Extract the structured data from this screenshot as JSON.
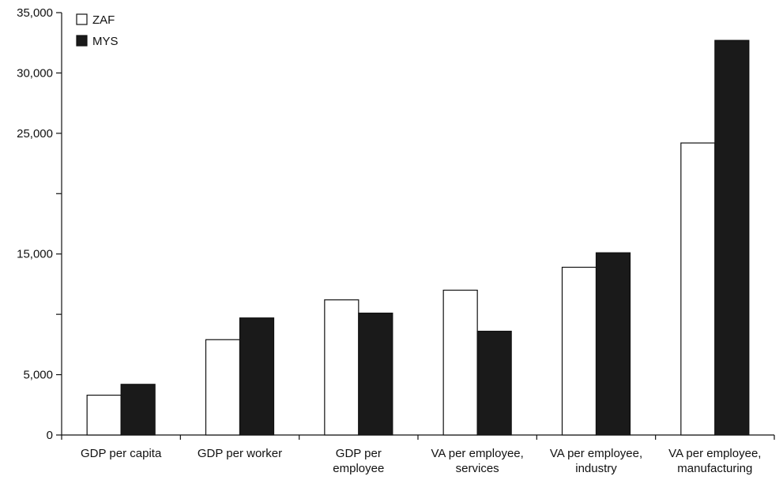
{
  "chart_data": {
    "type": "bar",
    "title": "",
    "xlabel": "",
    "ylabel": "",
    "ylim": [
      0,
      35000
    ],
    "yticks": [
      0,
      5000,
      15000,
      25000,
      30000,
      35000
    ],
    "yticks_unlabeled": [
      10000,
      20000
    ],
    "ytick_labels": [
      "0",
      "5,000",
      "15,000",
      "25,000",
      "30,000",
      "35,000"
    ],
    "categories": [
      [
        "GDP per capita"
      ],
      [
        "GDP per worker"
      ],
      [
        "GDP per",
        "employee"
      ],
      [
        "VA per employee,",
        "services"
      ],
      [
        "VA per employee,",
        "industry"
      ],
      [
        "VA per employee,",
        "manufacturing"
      ]
    ],
    "series": [
      {
        "name": "ZAF",
        "color": "#ffffff",
        "values": [
          3300,
          7900,
          11200,
          12000,
          13900,
          24200
        ]
      },
      {
        "name": "MYS",
        "color": "#1a1a1a",
        "values": [
          4200,
          9700,
          10100,
          8600,
          15100,
          32700
        ]
      }
    ],
    "legend": "top-left",
    "grid": false
  }
}
